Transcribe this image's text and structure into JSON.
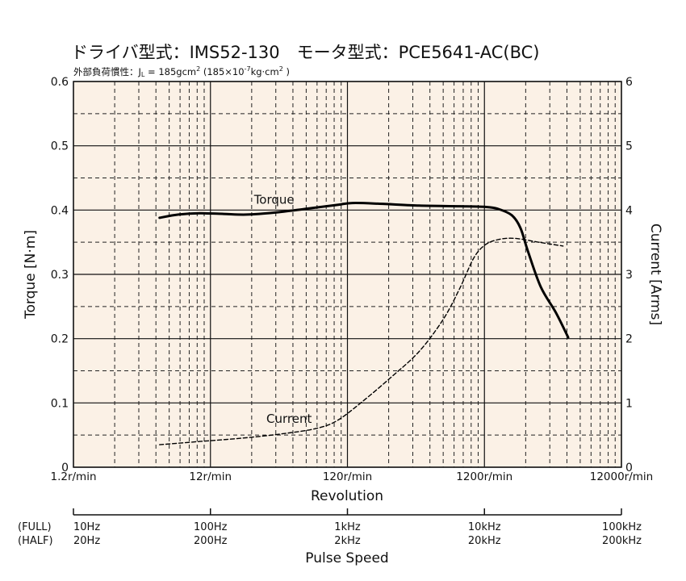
{
  "chart_data": {
    "type": "line",
    "title": "ドライバ型式：IMS52-130　モータ型式：PCE5641-AC(BC)",
    "subtitle": "外部負荷慣性：J",
    "subtitle_sub": "L",
    "subtitle_rest": " = 185gcm",
    "subtitle_sup": "2",
    "subtitle_paren": " (185×10",
    "subtitle_exp": "-7",
    "subtitle_unit": "kg·cm",
    "subtitle_unit_sup": "2",
    "subtitle_close": " )",
    "xlabel": "Revolution",
    "ylabel_left": "Torque [N·m]",
    "ylabel_right": "Current [Arms]",
    "x_scale": "log",
    "xlim": [
      1.2,
      12000
    ],
    "ylim_left": [
      0,
      0.6
    ],
    "ylim_right": [
      0,
      6
    ],
    "x_ticks": [
      1.2,
      12,
      120,
      1200,
      12000
    ],
    "x_tick_labels": [
      "1.2r/min",
      "12r/min",
      "120r/min",
      "1200r/min",
      "12000r/min"
    ],
    "y_left_ticks": [
      0,
      0.1,
      0.2,
      0.3,
      0.4,
      0.5,
      0.6
    ],
    "y_left_tick_labels": [
      "0",
      "0.1",
      "0.2",
      "0.3",
      "0.4",
      "0.5",
      "0.6"
    ],
    "y_right_ticks": [
      0,
      1,
      2,
      3,
      4,
      5,
      6
    ],
    "y_right_tick_labels": [
      "0",
      "1",
      "2",
      "3",
      "4",
      "5",
      "6"
    ],
    "grid": true,
    "background_color": "#fbf1e6",
    "series": [
      {
        "name": "Torque",
        "axis": "left",
        "style": "solid",
        "x": [
          5.1,
          7,
          10,
          15,
          22,
          35,
          60,
          100,
          130,
          200,
          400,
          800,
          1200,
          1500,
          1900,
          2200,
          2500,
          3100,
          4000,
          4900
        ],
        "y": [
          0.388,
          0.393,
          0.395,
          0.394,
          0.393,
          0.396,
          0.402,
          0.408,
          0.411,
          0.41,
          0.407,
          0.406,
          0.405,
          0.402,
          0.392,
          0.372,
          0.335,
          0.28,
          0.24,
          0.202
        ]
      },
      {
        "name": "Current",
        "axis": "right",
        "style": "dashed",
        "x": [
          5.1,
          10,
          20,
          40,
          70,
          100,
          150,
          250,
          400,
          600,
          800,
          1000,
          1200,
          1500,
          2000,
          3000,
          4500
        ],
        "y": [
          0.35,
          0.4,
          0.45,
          0.52,
          0.6,
          0.72,
          1.0,
          1.4,
          1.8,
          2.3,
          2.8,
          3.25,
          3.45,
          3.54,
          3.56,
          3.5,
          3.44
        ]
      }
    ],
    "annotations": [
      {
        "text": "Torque",
        "x": 35,
        "y": 0.41
      },
      {
        "text": "Current",
        "x": 45,
        "y": 0.069
      }
    ]
  },
  "pulse_axis": {
    "label": "Pulse Speed",
    "row_labels": [
      "(FULL)",
      "(HALF)"
    ],
    "full": [
      "10Hz",
      "100Hz",
      "1kHz",
      "10kHz",
      "100kHz"
    ],
    "half": [
      "20Hz",
      "200Hz",
      "2kHz",
      "20kHz",
      "200kHz"
    ]
  }
}
